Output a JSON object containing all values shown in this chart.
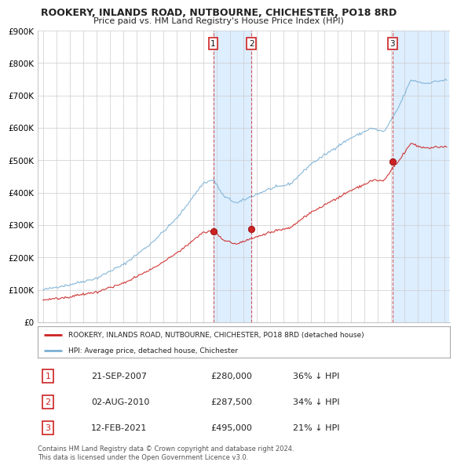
{
  "title": "ROOKERY, INLANDS ROAD, NUTBOURNE, CHICHESTER, PO18 8RD",
  "subtitle": "Price paid vs. HM Land Registry's House Price Index (HPI)",
  "ylim": [
    0,
    900000
  ],
  "yticks": [
    0,
    100000,
    200000,
    300000,
    400000,
    500000,
    600000,
    700000,
    800000,
    900000
  ],
  "ytick_labels": [
    "£0",
    "£100K",
    "£200K",
    "£300K",
    "£400K",
    "£500K",
    "£600K",
    "£700K",
    "£800K",
    "£900K"
  ],
  "hpi_color": "#7ab0d4",
  "price_color": "#cc2222",
  "transaction_times": [
    2007.722,
    2010.583,
    2021.117
  ],
  "transaction_prices": [
    280000,
    287500,
    495000
  ],
  "transaction_labels": [
    "1",
    "2",
    "3"
  ],
  "shade_color": "#ddeeff",
  "legend_line1": "ROOKERY, INLANDS ROAD, NUTBOURNE, CHICHESTER, PO18 8RD (detached house)",
  "legend_line2": "HPI: Average price, detached house, Chichester",
  "table_data": [
    [
      "1",
      "21-SEP-2007",
      "£280,000",
      "36% ↓ HPI"
    ],
    [
      "2",
      "02-AUG-2010",
      "£287,500",
      "34% ↓ HPI"
    ],
    [
      "3",
      "12-FEB-2021",
      "£495,000",
      "21% ↓ HPI"
    ]
  ],
  "footnote": "Contains HM Land Registry data © Crown copyright and database right 2024.\nThis data is licensed under the Open Government Licence v3.0.",
  "background_color": "#ffffff",
  "grid_color": "#cccccc"
}
